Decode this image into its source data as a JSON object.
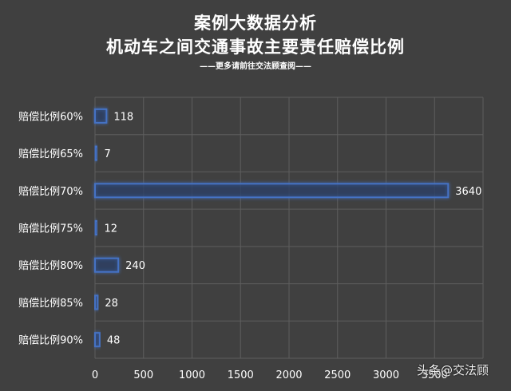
{
  "chart_data": {
    "type": "bar",
    "orientation": "horizontal",
    "title": "案例大数据分析",
    "subtitle": "机动车之间交通事故主要责任赔偿比例",
    "note": "——更多请前往交法顾查阅——",
    "categories": [
      "赔偿比例60%",
      "赔偿比例65%",
      "赔偿比例70%",
      "赔偿比例75%",
      "赔偿比例80%",
      "赔偿比例85%",
      "赔偿比例90%"
    ],
    "values": [
      118,
      7,
      3640,
      12,
      240,
      28,
      48
    ],
    "xlim": [
      0,
      4000
    ],
    "xticks": [
      0,
      500,
      1000,
      1500,
      2000,
      2500,
      3000,
      3500
    ],
    "grid": true,
    "legend": "none",
    "bar_color": "#4472c4"
  },
  "watermark": "头条@交法顾",
  "colors": {
    "background": "#404040",
    "grid": "#5e5e5e",
    "bar": "#4472c4",
    "text": "#ffffff"
  }
}
